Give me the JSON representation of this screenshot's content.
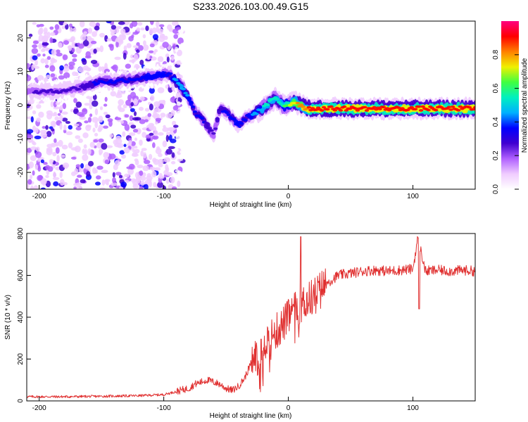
{
  "title": "S233.2026.103.00.49.G15",
  "colors": {
    "snr_line": "#e03030",
    "frame": "#000000",
    "colormap": [
      "#ffffff",
      "#f0ccff",
      "#b060ff",
      "#4000d0",
      "#0000ff",
      "#00b0ff",
      "#00f0c0",
      "#40ff40",
      "#f0f000",
      "#ff8000",
      "#ff0000",
      "#ff0080"
    ]
  },
  "chart_data": [
    {
      "type": "heatmap",
      "xlabel": "Height of straight line (km)",
      "ylabel": "Frequency (Hz)",
      "xlim": [
        -210,
        150
      ],
      "ylim": [
        -25,
        25
      ],
      "xticks": [
        -200,
        -100,
        0,
        100
      ],
      "xtick_labels": [
        "-200",
        "-100",
        "0",
        "100"
      ],
      "yticks": [
        -20,
        -10,
        0,
        10,
        20
      ],
      "ytick_labels": [
        "-20",
        "-10",
        "0",
        "10",
        "20"
      ],
      "colorbar": {
        "label": "Normalized spectral amplitude",
        "range": [
          0,
          1
        ],
        "ticks": [
          0.0,
          0.2,
          0.4,
          0.6,
          0.8
        ],
        "tick_labels": [
          "0.0",
          "0.2",
          "0.4",
          "0.6",
          "0.8"
        ]
      },
      "ridge": {
        "x": [
          -210,
          -200,
          -190,
          -180,
          -170,
          -160,
          -150,
          -140,
          -130,
          -120,
          -110,
          -100,
          -95,
          -90,
          -85,
          -80,
          -75,
          -70,
          -65,
          -60,
          -55,
          -50,
          -45,
          -40,
          -35,
          -30,
          -25,
          -20,
          -15,
          -10,
          -5,
          0,
          5,
          10,
          15,
          20,
          40,
          60,
          80,
          100,
          120,
          150
        ],
        "frequency": [
          4,
          4,
          4,
          4.5,
          5,
          6,
          7,
          7,
          7.5,
          8,
          8.5,
          9,
          9,
          7,
          5,
          2,
          -2,
          -4,
          -6,
          -9,
          -1,
          -2,
          -4,
          -6,
          -4,
          -3,
          -2,
          -1,
          1,
          2,
          0,
          0,
          1,
          0,
          -1,
          -1,
          -1,
          -1,
          -1,
          -1,
          -1,
          -1
        ],
        "amplitude": [
          0.25,
          0.3,
          0.3,
          0.3,
          0.3,
          0.35,
          0.4,
          0.4,
          0.4,
          0.4,
          0.45,
          0.45,
          0.4,
          0.5,
          0.55,
          0.45,
          0.4,
          0.4,
          0.35,
          0.3,
          0.35,
          0.4,
          0.4,
          0.45,
          0.4,
          0.45,
          0.5,
          0.55,
          0.6,
          0.6,
          0.6,
          0.7,
          0.8,
          0.85,
          0.9,
          0.95,
          0.95,
          0.95,
          0.95,
          0.95,
          0.95,
          0.95
        ]
      }
    },
    {
      "type": "line",
      "xlabel": "Height of straight line (km)",
      "ylabel": "SNR (10 * v/v)",
      "xlim": [
        -210,
        150
      ],
      "ylim": [
        0,
        800
      ],
      "xticks": [
        -200,
        -100,
        0,
        100
      ],
      "xtick_labels": [
        "-200",
        "-100",
        "0",
        "100"
      ],
      "yticks": [
        0,
        200,
        400,
        600,
        800
      ],
      "ytick_labels": [
        "0",
        "200",
        "400",
        "600",
        "800"
      ],
      "series": [
        {
          "name": "SNR",
          "x": [
            -210,
            -180,
            -150,
            -120,
            -100,
            -90,
            -80,
            -75,
            -70,
            -65,
            -60,
            -55,
            -50,
            -45,
            -40,
            -35,
            -30,
            -25,
            -20,
            -15,
            -10,
            -5,
            0,
            5,
            10,
            15,
            20,
            25,
            30,
            40,
            50,
            60,
            70,
            80,
            90,
            100,
            104,
            110,
            120,
            130,
            140,
            150
          ],
          "y": [
            20,
            20,
            22,
            25,
            30,
            45,
            60,
            80,
            90,
            100,
            90,
            80,
            60,
            50,
            70,
            110,
            180,
            230,
            280,
            300,
            330,
            360,
            400,
            430,
            460,
            480,
            500,
            530,
            560,
            600,
            610,
            620,
            625,
            620,
            625,
            630,
            780,
            620,
            625,
            620,
            625,
            620
          ]
        }
      ]
    }
  ]
}
